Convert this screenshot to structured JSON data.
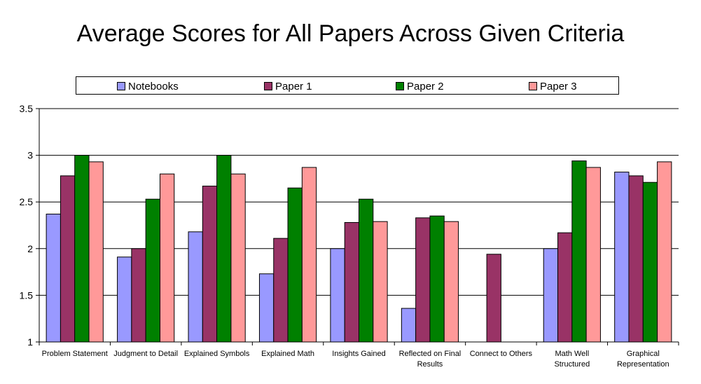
{
  "chart_data": {
    "type": "bar",
    "title": "Average Scores for All Papers Across Given Criteria",
    "xlabel": "",
    "ylabel": "",
    "ylim": [
      1,
      3.5
    ],
    "yticks": [
      "1",
      "1.5",
      "2",
      "2.5",
      "3",
      "3.5"
    ],
    "grid": true,
    "legend_position": "top",
    "categories": [
      "Problem Statement",
      "Judgment to Detail",
      "Explained Symbols",
      "Explained Math",
      "Insights Gained",
      "Reflected on Final Results",
      "Connect to Others",
      "Math Well Structured",
      "Graphical Representation"
    ],
    "series": [
      {
        "name": "Notebooks",
        "color": "#9999ff",
        "values": [
          2.37,
          1.91,
          2.18,
          1.73,
          2.0,
          1.36,
          null,
          2.0,
          2.82
        ]
      },
      {
        "name": "Paper 1",
        "color": "#993366",
        "values": [
          2.78,
          2.0,
          2.67,
          2.11,
          2.28,
          2.33,
          1.94,
          2.17,
          2.78
        ]
      },
      {
        "name": "Paper 2",
        "color": "#008000",
        "values": [
          3.0,
          2.53,
          3.0,
          2.65,
          2.53,
          2.35,
          null,
          2.94,
          2.71
        ]
      },
      {
        "name": "Paper 3",
        "color": "#ff9999",
        "values": [
          2.93,
          2.8,
          2.8,
          2.87,
          2.29,
          2.29,
          null,
          2.87,
          2.93
        ]
      }
    ]
  }
}
